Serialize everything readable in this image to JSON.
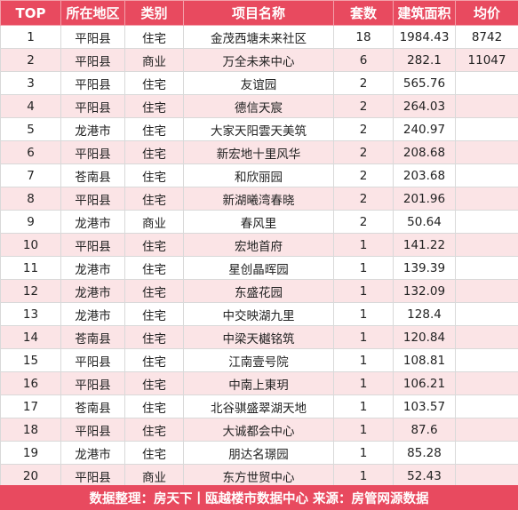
{
  "table": {
    "headers": [
      "TOP",
      "所在地区",
      "类别",
      "项目名称",
      "套数",
      "建筑面积",
      "均价"
    ],
    "rows": [
      [
        "1",
        "平阳县",
        "住宅",
        "金茂西塘未来社区",
        "18",
        "1984.43",
        "8742"
      ],
      [
        "2",
        "平阳县",
        "商业",
        "万全未来中心",
        "6",
        "282.1",
        "11047"
      ],
      [
        "3",
        "平阳县",
        "住宅",
        "友谊园",
        "2",
        "565.76",
        ""
      ],
      [
        "4",
        "平阳县",
        "住宅",
        "德信天宸",
        "2",
        "264.03",
        ""
      ],
      [
        "5",
        "龙港市",
        "住宅",
        "大家天阳雲天美筑",
        "2",
        "240.97",
        ""
      ],
      [
        "6",
        "平阳县",
        "住宅",
        "新宏地十里风华",
        "2",
        "208.68",
        ""
      ],
      [
        "7",
        "苍南县",
        "住宅",
        "和欣丽园",
        "2",
        "203.68",
        ""
      ],
      [
        "8",
        "平阳县",
        "住宅",
        "新湖曦湾春晓",
        "2",
        "201.96",
        ""
      ],
      [
        "9",
        "龙港市",
        "商业",
        "春风里",
        "2",
        "50.64",
        ""
      ],
      [
        "10",
        "平阳县",
        "住宅",
        "宏地首府",
        "1",
        "141.22",
        ""
      ],
      [
        "11",
        "龙港市",
        "住宅",
        "星创晶晖园",
        "1",
        "139.39",
        ""
      ],
      [
        "12",
        "龙港市",
        "住宅",
        "东盛花园",
        "1",
        "132.09",
        ""
      ],
      [
        "13",
        "龙港市",
        "住宅",
        "中交映湖九里",
        "1",
        "128.4",
        ""
      ],
      [
        "14",
        "苍南县",
        "住宅",
        "中梁天樾铭筑",
        "1",
        "120.84",
        ""
      ],
      [
        "15",
        "平阳县",
        "住宅",
        "江南壹号院",
        "1",
        "108.81",
        ""
      ],
      [
        "16",
        "平阳县",
        "住宅",
        "中南上東玥",
        "1",
        "106.21",
        ""
      ],
      [
        "17",
        "苍南县",
        "住宅",
        "北谷骐盛翠湖天地",
        "1",
        "103.57",
        ""
      ],
      [
        "18",
        "平阳县",
        "住宅",
        "大诚都会中心",
        "1",
        "87.6",
        ""
      ],
      [
        "19",
        "龙港市",
        "住宅",
        "朋达名璟园",
        "1",
        "85.28",
        ""
      ],
      [
        "20",
        "平阳县",
        "商业",
        "东方世贸中心",
        "1",
        "52.43",
        ""
      ]
    ]
  },
  "footer": {
    "text": "数据整理：房天下丨瓯越楼市数据中心   来源：房管网源数据"
  },
  "colors": {
    "header_bg": "#e84a5f",
    "alt_row_bg": "#fbe4e6",
    "footer_bg": "#e84a5f"
  }
}
